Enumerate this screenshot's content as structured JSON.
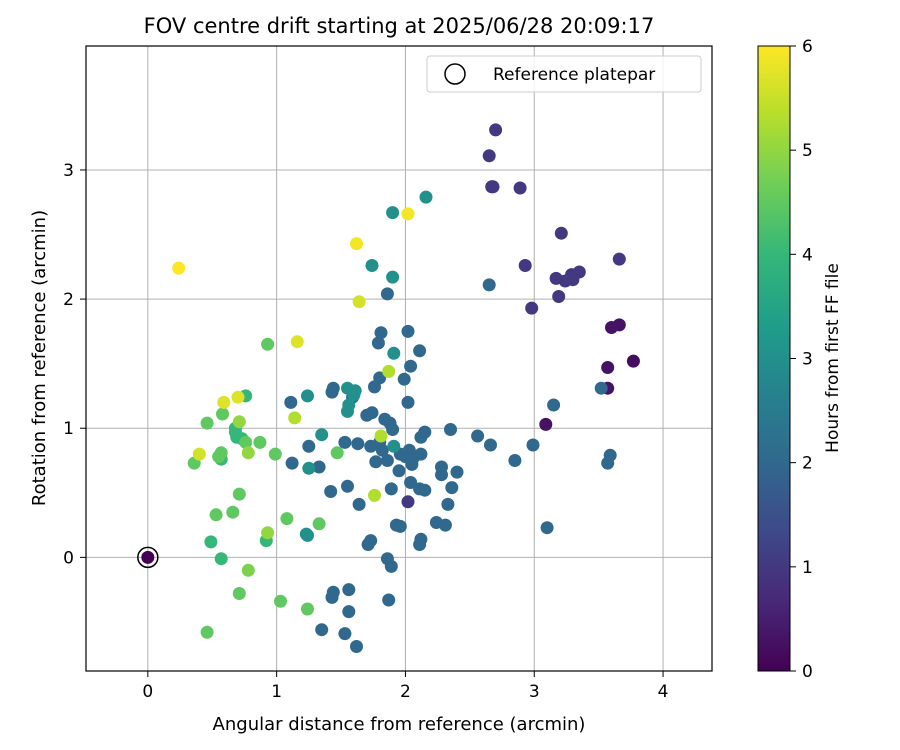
{
  "chart_data": {
    "type": "scatter",
    "title": "FOV centre drift starting at 2025/06/28 20:09:17",
    "xlabel": "Angular distance from reference (arcmin)",
    "ylabel": "Rotation from reference (arcmin)",
    "xlim": [
      -0.48,
      4.38
    ],
    "ylim": [
      -0.88,
      3.96
    ],
    "xticks": [
      0,
      1,
      2,
      3,
      4
    ],
    "yticks": [
      0,
      1,
      2,
      3
    ],
    "xtick_labels": [
      "0",
      "1",
      "2",
      "3",
      "4"
    ],
    "ytick_labels": [
      "0",
      "1",
      "2",
      "3"
    ],
    "grid": true,
    "legend": {
      "position": "top-right",
      "label": "Reference platepar"
    },
    "colorbar": {
      "label": "Hours from first FF file",
      "range": [
        0,
        6
      ],
      "ticks": [
        "0",
        "1",
        "2",
        "3",
        "4",
        "5",
        "6"
      ],
      "colormap": "viridis"
    },
    "reference_point": {
      "x": 0,
      "y": 0,
      "c": 0
    },
    "points": [
      [
        3.77,
        1.52,
        0.2
      ],
      [
        3.66,
        1.8,
        0.3
      ],
      [
        3.6,
        1.78,
        0.3
      ],
      [
        3.57,
        1.47,
        0.3
      ],
      [
        3.57,
        1.31,
        0.3
      ],
      [
        3.09,
        1.03,
        0.3
      ],
      [
        2.7,
        3.31,
        1.0
      ],
      [
        2.65,
        3.11,
        1.0
      ],
      [
        2.67,
        2.87,
        1.0
      ],
      [
        2.68,
        2.87,
        1.0
      ],
      [
        2.89,
        2.86,
        1.0
      ],
      [
        3.21,
        2.51,
        1.0
      ],
      [
        2.93,
        2.26,
        1.0
      ],
      [
        3.66,
        2.31,
        1.0
      ],
      [
        3.35,
        2.21,
        1.0
      ],
      [
        3.29,
        2.19,
        1.0
      ],
      [
        3.17,
        2.16,
        1.0
      ],
      [
        3.24,
        2.14,
        1.0
      ],
      [
        3.3,
        2.15,
        1.0
      ],
      [
        3.19,
        2.02,
        1.0
      ],
      [
        2.98,
        1.93,
        1.0
      ],
      [
        2.02,
        0.43,
        1.0
      ],
      [
        2.65,
        2.11,
        2.0
      ],
      [
        3.52,
        1.31,
        2.0
      ],
      [
        3.15,
        1.18,
        2.0
      ],
      [
        3.59,
        0.79,
        2.0
      ],
      [
        3.57,
        0.73,
        2.0
      ],
      [
        2.99,
        0.87,
        2.0
      ],
      [
        2.85,
        0.75,
        2.0
      ],
      [
        2.66,
        0.87,
        2.0
      ],
      [
        2.56,
        0.94,
        2.0
      ],
      [
        3.1,
        0.23,
        2.0
      ],
      [
        2.35,
        0.99,
        2.0
      ],
      [
        2.4,
        0.66,
        2.0
      ],
      [
        2.28,
        0.7,
        2.0
      ],
      [
        2.28,
        0.64,
        2.0
      ],
      [
        2.36,
        0.54,
        2.0
      ],
      [
        2.33,
        0.41,
        2.0
      ],
      [
        2.24,
        0.27,
        2.0
      ],
      [
        2.31,
        0.25,
        2.0
      ],
      [
        2.15,
        0.97,
        2.0
      ],
      [
        2.12,
        0.93,
        2.0
      ],
      [
        2.12,
        0.8,
        2.0
      ],
      [
        2.06,
        0.77,
        2.0
      ],
      [
        2.05,
        0.72,
        2.0
      ],
      [
        2.03,
        0.83,
        2.0
      ],
      [
        2.0,
        0.78,
        2.0
      ],
      [
        1.96,
        0.8,
        2.0
      ],
      [
        1.95,
        0.67,
        2.0
      ],
      [
        2.04,
        0.58,
        2.0
      ],
      [
        2.11,
        0.53,
        2.0
      ],
      [
        2.15,
        0.52,
        2.0
      ],
      [
        1.89,
        0.53,
        2.0
      ],
      [
        2.12,
        0.14,
        2.0
      ],
      [
        2.11,
        0.1,
        2.0
      ],
      [
        1.93,
        0.25,
        2.0
      ],
      [
        1.96,
        0.24,
        2.0
      ],
      [
        1.86,
        -0.01,
        2.0
      ],
      [
        1.89,
        -0.07,
        2.0
      ],
      [
        1.87,
        -0.33,
        2.0
      ],
      [
        1.62,
        -0.69,
        2.0
      ],
      [
        1.56,
        -0.42,
        2.0
      ],
      [
        1.53,
        -0.59,
        2.0
      ],
      [
        1.35,
        -0.56,
        2.0
      ],
      [
        1.56,
        -0.25,
        2.0
      ],
      [
        1.44,
        -0.27,
        2.0
      ],
      [
        1.43,
        -0.31,
        2.0
      ],
      [
        1.73,
        0.13,
        2.0
      ],
      [
        1.71,
        0.1,
        2.0
      ],
      [
        1.64,
        0.41,
        2.0
      ],
      [
        1.55,
        0.55,
        2.0
      ],
      [
        1.42,
        0.51,
        2.0
      ],
      [
        1.33,
        0.7,
        2.0
      ],
      [
        1.12,
        0.73,
        2.0
      ],
      [
        1.25,
        0.86,
        2.0
      ],
      [
        1.53,
        0.89,
        2.0
      ],
      [
        1.63,
        0.88,
        2.0
      ],
      [
        1.73,
        0.86,
        2.0
      ],
      [
        1.77,
        0.74,
        2.0
      ],
      [
        1.82,
        0.83,
        2.0
      ],
      [
        1.86,
        0.75,
        2.0
      ],
      [
        1.8,
        0.89,
        2.0
      ],
      [
        1.9,
        0.99,
        2.0
      ],
      [
        1.88,
        1.04,
        2.0
      ],
      [
        1.84,
        1.07,
        2.0
      ],
      [
        1.74,
        1.12,
        2.0
      ],
      [
        1.7,
        1.1,
        2.0
      ],
      [
        1.76,
        1.32,
        2.0
      ],
      [
        1.8,
        1.39,
        2.0
      ],
      [
        1.79,
        1.66,
        2.0
      ],
      [
        1.81,
        1.74,
        2.0
      ],
      [
        1.99,
        1.38,
        2.0
      ],
      [
        2.04,
        1.48,
        2.0
      ],
      [
        2.02,
        1.2,
        2.0
      ],
      [
        2.11,
        1.6,
        2.0
      ],
      [
        2.02,
        1.75,
        2.0
      ],
      [
        1.86,
        2.04,
        2.0
      ],
      [
        1.11,
        1.2,
        2.0
      ],
      [
        1.43,
        1.28,
        2.0
      ],
      [
        1.44,
        1.31,
        2.0
      ],
      [
        1.59,
        1.24,
        2.0
      ],
      [
        1.91,
        1.58,
        3.0
      ],
      [
        1.74,
        2.26,
        3.0
      ],
      [
        1.9,
        2.17,
        3.0
      ],
      [
        1.9,
        2.67,
        3.0
      ],
      [
        2.16,
        2.79,
        3.0
      ],
      [
        1.91,
        0.86,
        3.0
      ],
      [
        1.55,
        1.13,
        3.0
      ],
      [
        1.56,
        1.18,
        3.0
      ],
      [
        1.6,
        1.26,
        3.0
      ],
      [
        1.61,
        1.29,
        3.0
      ],
      [
        1.55,
        1.31,
        3.0
      ],
      [
        1.24,
        1.25,
        3.0
      ],
      [
        1.35,
        0.95,
        3.0
      ],
      [
        1.25,
        0.69,
        3.0
      ],
      [
        1.23,
        0.18,
        3.0
      ],
      [
        1.24,
        0.17,
        3.0
      ],
      [
        0.73,
        0.92,
        4.0
      ],
      [
        0.69,
        0.93,
        4.0
      ],
      [
        0.68,
        0.97,
        4.0
      ],
      [
        0.68,
        1.0,
        4.0
      ],
      [
        0.76,
        1.25,
        4.0
      ],
      [
        0.57,
        0.76,
        4.0
      ],
      [
        0.57,
        -0.01,
        4.0
      ],
      [
        0.49,
        0.12,
        4.0
      ],
      [
        0.92,
        0.13,
        4.0
      ],
      [
        0.46,
        1.04,
        4.5
      ],
      [
        0.58,
        1.11,
        4.5
      ],
      [
        0.76,
        0.89,
        4.5
      ],
      [
        0.87,
        0.89,
        4.5
      ],
      [
        0.55,
        0.78,
        4.5
      ],
      [
        0.57,
        0.81,
        4.5
      ],
      [
        0.36,
        0.73,
        4.5
      ],
      [
        0.53,
        0.33,
        4.5
      ],
      [
        0.66,
        0.35,
        4.5
      ],
      [
        0.71,
        0.49,
        4.5
      ],
      [
        0.46,
        -0.58,
        4.5
      ],
      [
        0.71,
        -0.28,
        4.5
      ],
      [
        1.03,
        -0.34,
        4.5
      ],
      [
        1.24,
        -0.4,
        4.5
      ],
      [
        1.08,
        0.3,
        4.5
      ],
      [
        1.33,
        0.26,
        4.5
      ],
      [
        0.93,
        1.65,
        4.5
      ],
      [
        0.99,
        0.8,
        4.5
      ],
      [
        1.47,
        0.81,
        4.5
      ],
      [
        0.78,
        -0.1,
        4.8
      ],
      [
        0.93,
        0.19,
        5.0
      ],
      [
        0.71,
        1.05,
        5.0
      ],
      [
        0.78,
        0.81,
        5.0
      ],
      [
        1.14,
        1.08,
        5.3
      ],
      [
        1.76,
        0.48,
        5.3
      ],
      [
        1.81,
        0.94,
        5.3
      ],
      [
        1.87,
        1.44,
        5.3
      ],
      [
        1.64,
        1.98,
        5.6
      ],
      [
        0.4,
        0.8,
        5.6
      ],
      [
        0.59,
        1.2,
        5.7
      ],
      [
        0.7,
        1.24,
        5.7
      ],
      [
        1.16,
        1.67,
        5.7
      ],
      [
        1.62,
        2.43,
        5.9
      ],
      [
        2.02,
        2.66,
        5.9
      ],
      [
        0.24,
        2.24,
        6.0
      ]
    ]
  },
  "viridis": [
    "#440154",
    "#482878",
    "#3e4989",
    "#31688e",
    "#26828e",
    "#1f9e89",
    "#35b779",
    "#6ece58",
    "#b5de2b",
    "#fde725"
  ]
}
